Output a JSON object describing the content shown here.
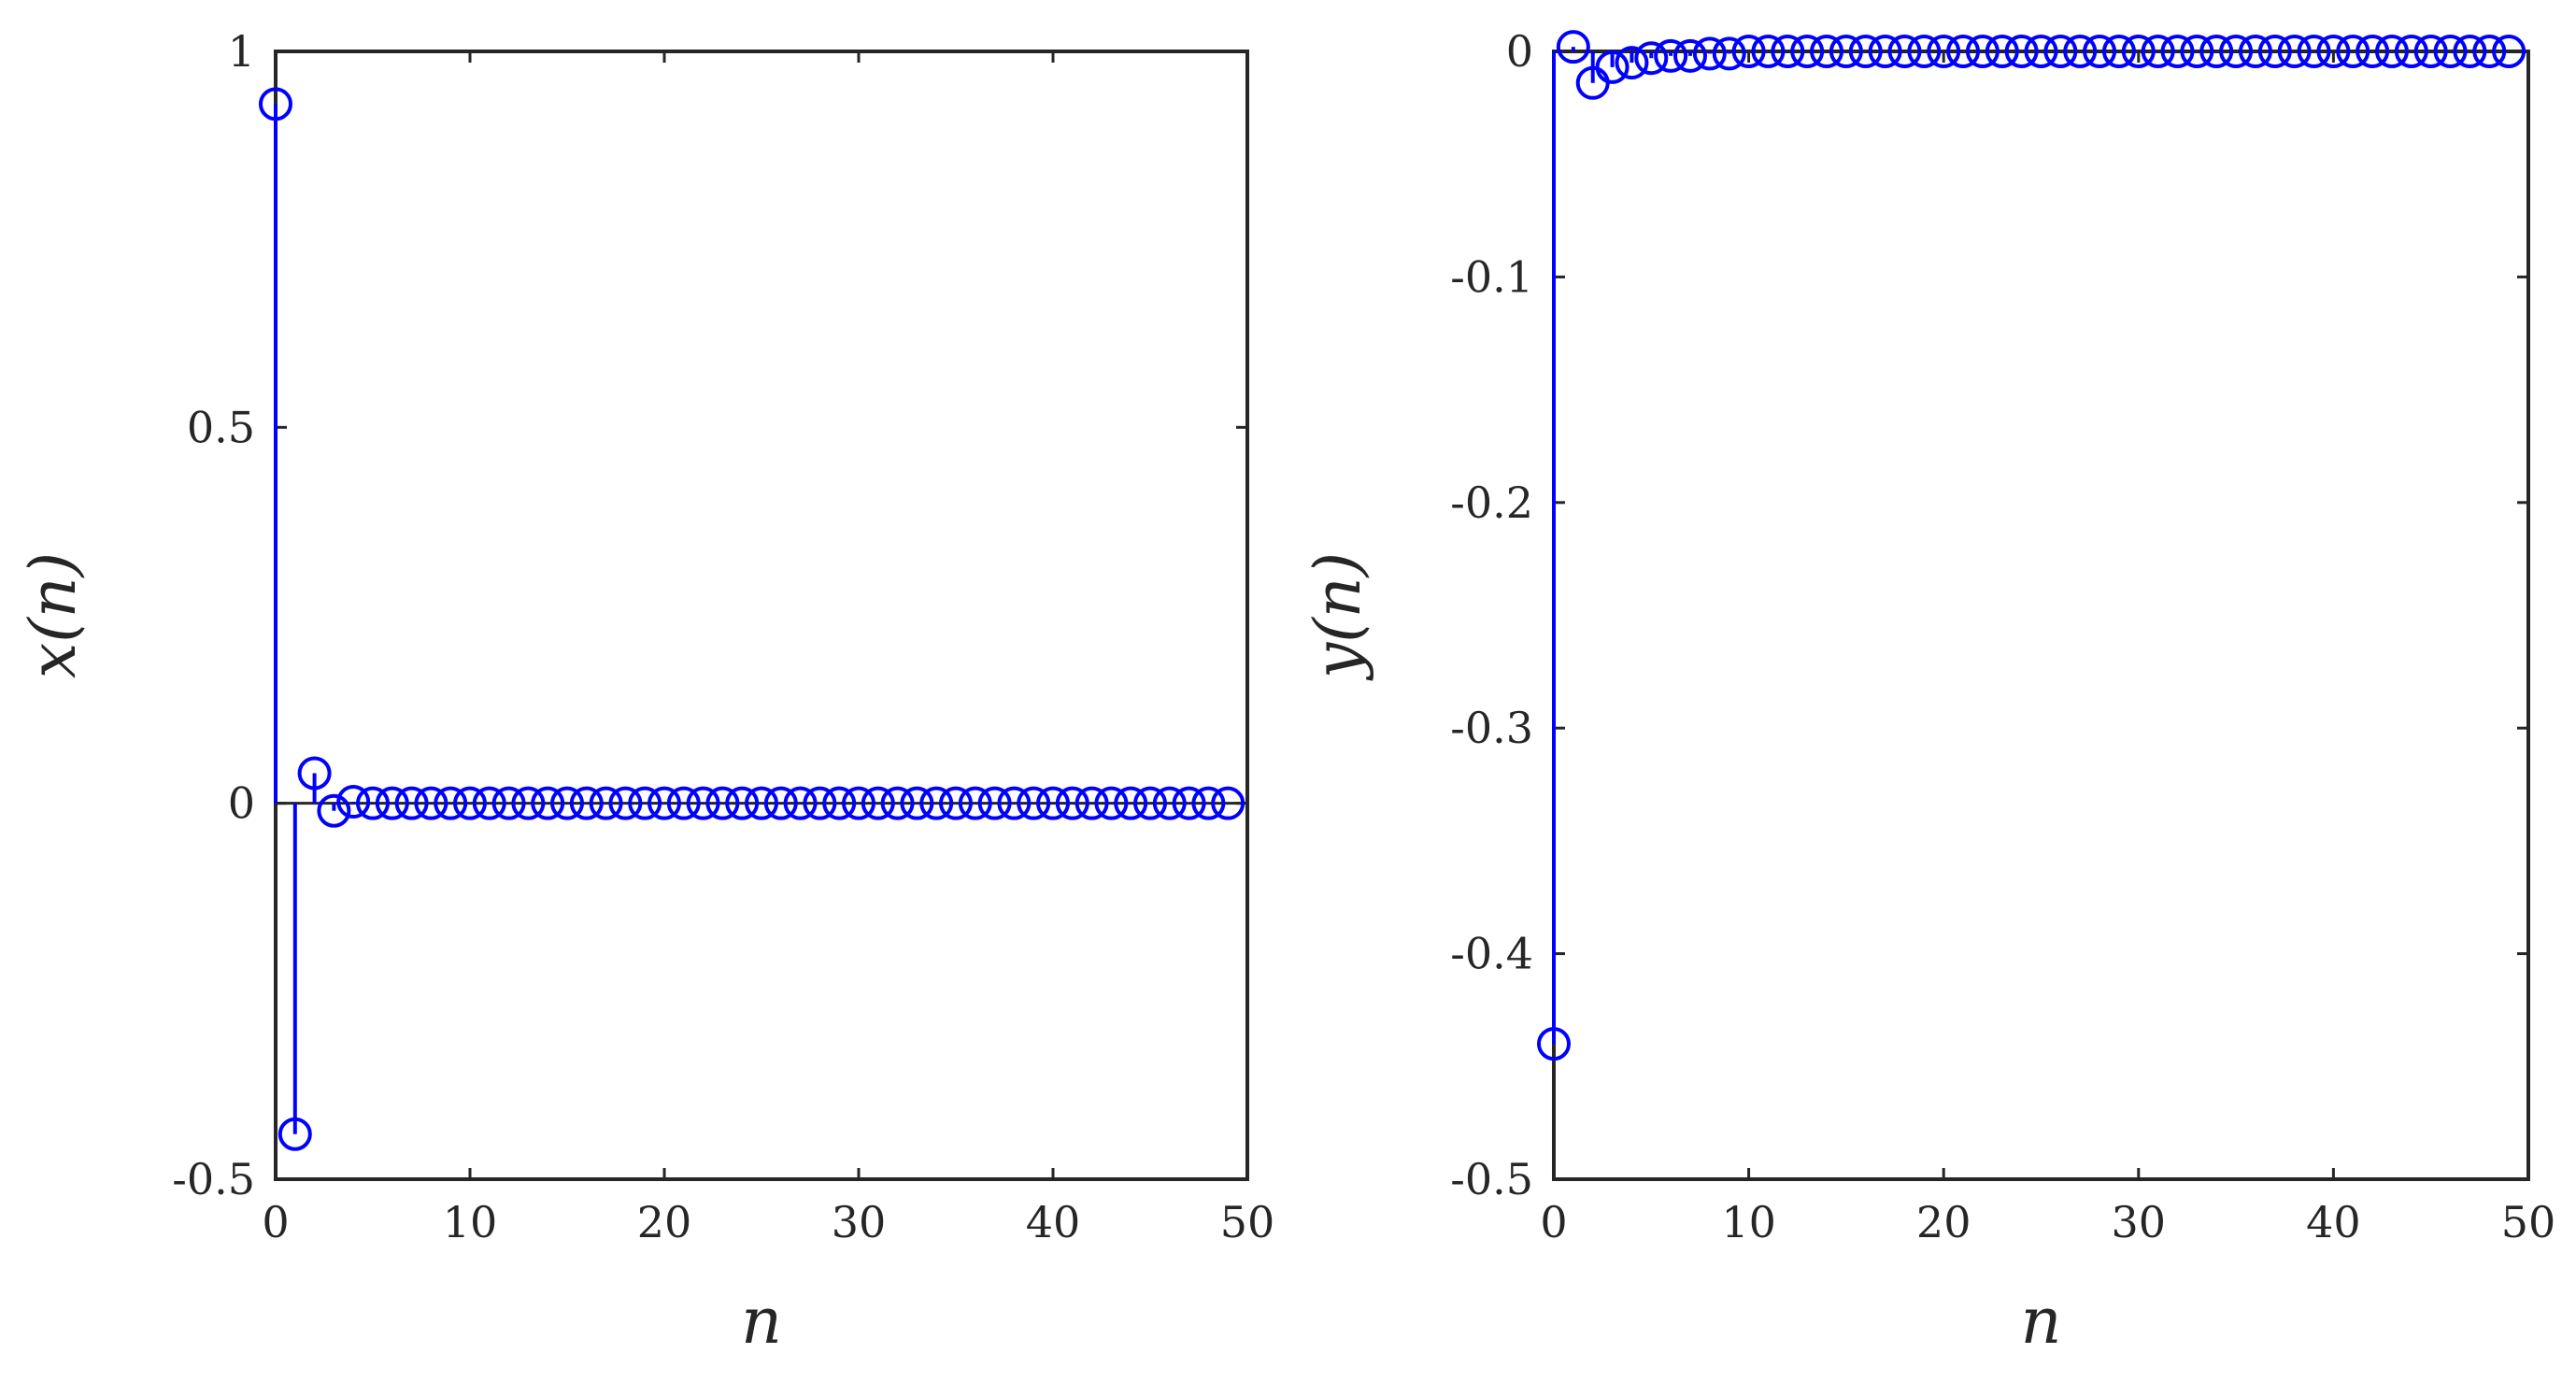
{
  "chart_data": [
    {
      "type": "stem",
      "xlabel": "n",
      "ylabel": "x(n)",
      "xlim": [
        0,
        50
      ],
      "ylim": [
        -0.5,
        1
      ],
      "xticks": [
        "0",
        "10",
        "20",
        "30",
        "40",
        "50"
      ],
      "yticks": [
        "-0.5",
        "0",
        "0.5",
        "1"
      ],
      "x": [
        0,
        1,
        2,
        3,
        4,
        5,
        6,
        7,
        8,
        9,
        10,
        11,
        12,
        13,
        14,
        15,
        16,
        17,
        18,
        19,
        20,
        21,
        22,
        23,
        24,
        25,
        26,
        27,
        28,
        29,
        30,
        31,
        32,
        33,
        34,
        35,
        36,
        37,
        38,
        39,
        40,
        41,
        42,
        43,
        44,
        45,
        46,
        47,
        48,
        49
      ],
      "y": [
        0.93,
        -0.44,
        0.04,
        -0.01,
        0.002,
        0,
        0,
        0,
        0,
        0,
        0,
        0,
        0,
        0,
        0,
        0,
        0,
        0,
        0,
        0,
        0,
        0,
        0,
        0,
        0,
        0,
        0,
        0,
        0,
        0,
        0,
        0,
        0,
        0,
        0,
        0,
        0,
        0,
        0,
        0,
        0,
        0,
        0,
        0,
        0,
        0,
        0,
        0,
        0,
        0
      ],
      "color": "#0000ff",
      "marker": "open-circle",
      "grid": false
    },
    {
      "type": "stem",
      "xlabel": "n",
      "ylabel": "y(n)",
      "xlim": [
        0,
        50
      ],
      "ylim": [
        -0.5,
        0
      ],
      "xticks": [
        "0",
        "10",
        "20",
        "30",
        "40",
        "50"
      ],
      "yticks": [
        "-0.5",
        "-0.4",
        "-0.3",
        "-0.2",
        "-0.1",
        "0"
      ],
      "x": [
        0,
        1,
        2,
        3,
        4,
        5,
        6,
        7,
        8,
        9,
        10,
        11,
        12,
        13,
        14,
        15,
        16,
        17,
        18,
        19,
        20,
        21,
        22,
        23,
        24,
        25,
        26,
        27,
        28,
        29,
        30,
        31,
        32,
        33,
        34,
        35,
        36,
        37,
        38,
        39,
        40,
        41,
        42,
        43,
        44,
        45,
        46,
        47,
        48,
        49
      ],
      "y": [
        -0.44,
        0.002,
        -0.014,
        -0.007,
        -0.005,
        -0.003,
        -0.002,
        -0.002,
        -0.001,
        -0.001,
        0,
        0,
        0,
        0,
        0,
        0,
        0,
        0,
        0,
        0,
        0,
        0,
        0,
        0,
        0,
        0,
        0,
        0,
        0,
        0,
        0,
        0,
        0,
        0,
        0,
        0,
        0,
        0,
        0,
        0,
        0,
        0,
        0,
        0,
        0,
        0,
        0,
        0,
        0,
        0
      ],
      "color": "#0000ff",
      "marker": "open-circle",
      "grid": false
    }
  ]
}
